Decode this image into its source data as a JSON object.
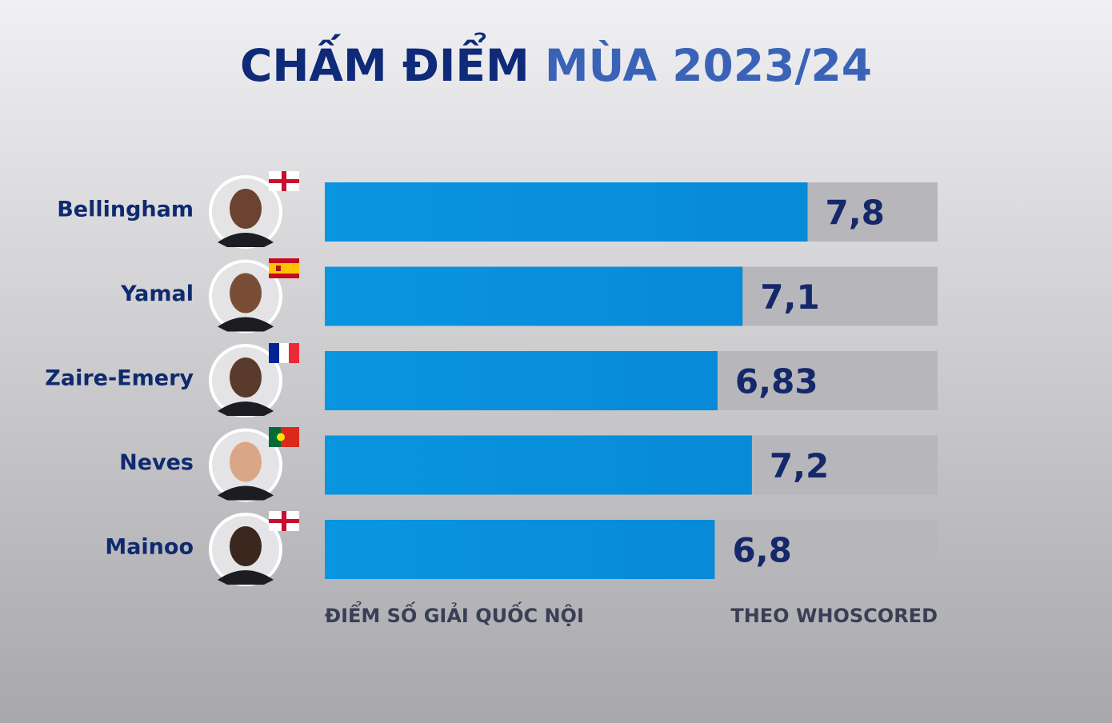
{
  "chart_data": {
    "type": "hbar",
    "title": [
      "CHẤM ĐIỂM",
      "MÙA 2023/24"
    ],
    "title_colors": [
      "#0f2a78",
      "#3a63b8"
    ],
    "categories": [
      "Bellingham",
      "Yamal",
      "Zaire-Emery",
      "Neves",
      "Mainoo"
    ],
    "values": [
      7.8,
      7.1,
      6.83,
      7.2,
      6.8
    ],
    "value_labels": [
      "7,8",
      "7,1",
      "6,83",
      "7,2",
      "6,8"
    ],
    "color": "#0a90de",
    "track_color": "#b7b7bb",
    "xlim": [
      2.6,
      9.2
    ],
    "x_label": "ĐIỂM SỐ GIẢI QUỐC NỘI",
    "source": "THEO WHOSCORED"
  }
}
